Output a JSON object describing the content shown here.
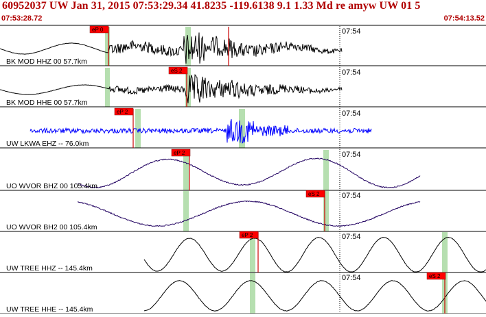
{
  "header": {
    "title": "60952037 UW Jan 31, 2015 07:53:29.34   41.8235 -119.6138  9.1 1.33 Md re amyw UW 01   5",
    "start_time": "07:53:28.72",
    "end_time": "07:54:13.52"
  },
  "tick_label": "07:54",
  "colors": {
    "header_text": "#b00000",
    "pick_box": "#ff0000",
    "pick_line": "#cc0000",
    "highlight": "#b6dfb0",
    "trace_default": "#000000",
    "trace_lkwa": "#0000ff",
    "trace_wvor": "#200060"
  },
  "traces": [
    {
      "label": "BK MOD HHZ 00 57.7km",
      "pick": "eP 0",
      "color": "#000000"
    },
    {
      "label": "BK MOD HHE 00 57.7km",
      "pick": "eS 2",
      "color": "#000000"
    },
    {
      "label": "UW LKWA EHZ -- 76.0km",
      "pick": "eP 2",
      "color": "#0000ff"
    },
    {
      "label": "UO WVOR BHZ 00 105.4km",
      "pick": "eP 2",
      "color": "#200060"
    },
    {
      "label": "UO WVOR BH2 00 105.4km",
      "pick": "eS 2",
      "color": "#200060"
    },
    {
      "label": "UW TREE HHZ -- 145.4km",
      "pick": "eP 2",
      "color": "#000000"
    },
    {
      "label": "UW TREE HHE -- 145.4km",
      "pick": "eS 2",
      "color": "#000000"
    }
  ]
}
